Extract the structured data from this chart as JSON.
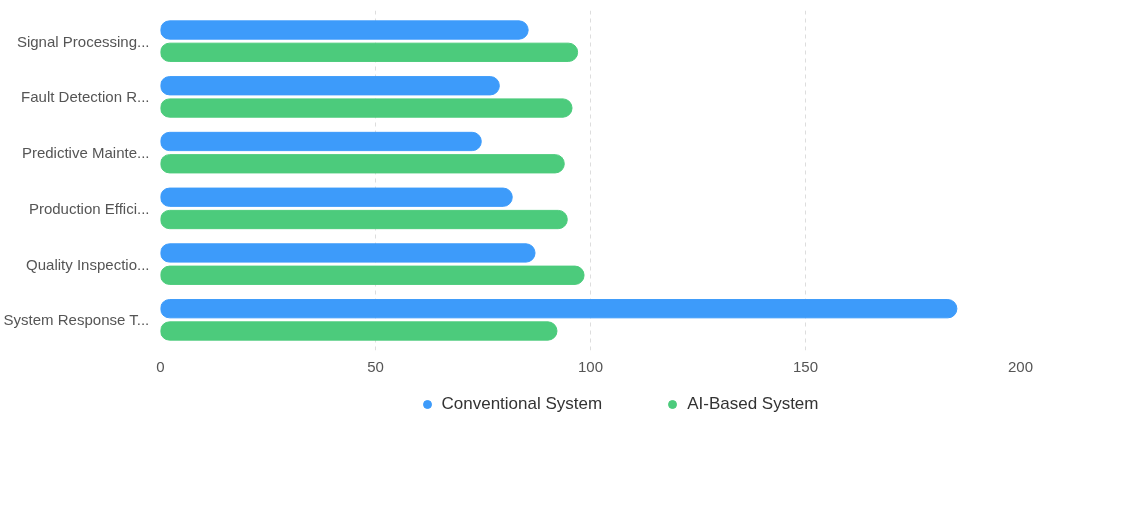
{
  "chart_data": {
    "type": "bar",
    "orientation": "horizontal",
    "categories": [
      "Signal Processing...",
      "Fault Detection R...",
      "Predictive Mainte...",
      "Production Effici...",
      "Quality Inspectio...",
      "System Response T..."
    ],
    "series": [
      {
        "name": "Conventional System",
        "color": "#3d9bfa",
        "values": [
          85.5,
          78.8,
          74.6,
          81.8,
          87.1,
          185.2
        ]
      },
      {
        "name": "AI-Based System",
        "color": "#4ccb7c",
        "values": [
          97,
          95.7,
          93.9,
          94.6,
          98.5,
          92.2
        ]
      }
    ],
    "xlim": [
      0,
      200
    ],
    "xticks": [
      0,
      50,
      100,
      150,
      200
    ],
    "grid": "x",
    "legend": "bottom"
  }
}
